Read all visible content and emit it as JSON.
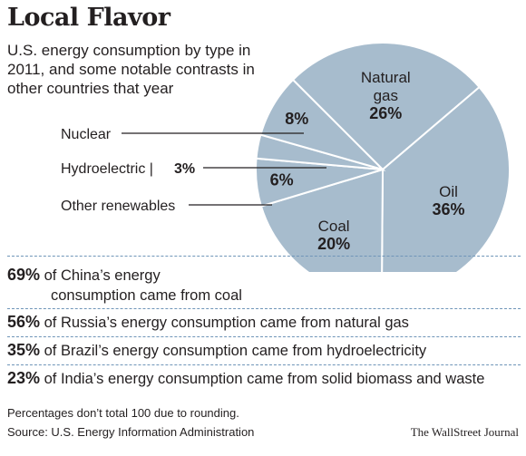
{
  "title": "Local Flavor",
  "subtitle": "U.S. energy consumption by type in 2011, and some notable contrasts in other countries that year",
  "colors": {
    "slice": "#a7bccd",
    "slice_border": "#ffffff",
    "leader": "#231f20",
    "divider": "#6f95b8"
  },
  "chart_data": {
    "type": "pie",
    "title": "",
    "categories": [
      "Natural gas",
      "Oil",
      "Coal",
      "Other renewables",
      "Hydroelectric",
      "Nuclear"
    ],
    "values": [
      26,
      36,
      20,
      6,
      3,
      8
    ],
    "value_labels": [
      "26%",
      "36%",
      "20%",
      "6%",
      "3%",
      "8%"
    ],
    "inside_labels": [
      {
        "name": [
          "Natural",
          "gas"
        ],
        "value": "26%"
      },
      {
        "name": [
          "Oil"
        ],
        "value": "36%"
      },
      {
        "name": [
          "Coal"
        ],
        "value": "20%"
      },
      {
        "name": [],
        "value": "6%"
      },
      {
        "name": [],
        "value": ""
      },
      {
        "name": [],
        "value": "8%"
      }
    ],
    "callouts": {
      "nuclear": "Nuclear",
      "hydro": "Hydroelectric | ",
      "hydro_value": "3%",
      "renewables": "Other renewables"
    }
  },
  "facts": [
    {
      "pct": "69%",
      "line1": " of China’s energy",
      "line2": "consumption came from coal"
    },
    {
      "pct": "56%",
      "line1": " of Russia’s energy consumption came from natural gas"
    },
    {
      "pct": "35%",
      "line1": " of Brazil’s energy consumption came from hydroelectricity"
    },
    {
      "pct": "23%",
      "line1": " of India’s energy consumption came from solid biomass and waste"
    }
  ],
  "footnote": "Percentages don’t total 100 due to rounding.",
  "source": "Source: U.S. Energy Information Administration",
  "credit": "The WallStreet Journal"
}
